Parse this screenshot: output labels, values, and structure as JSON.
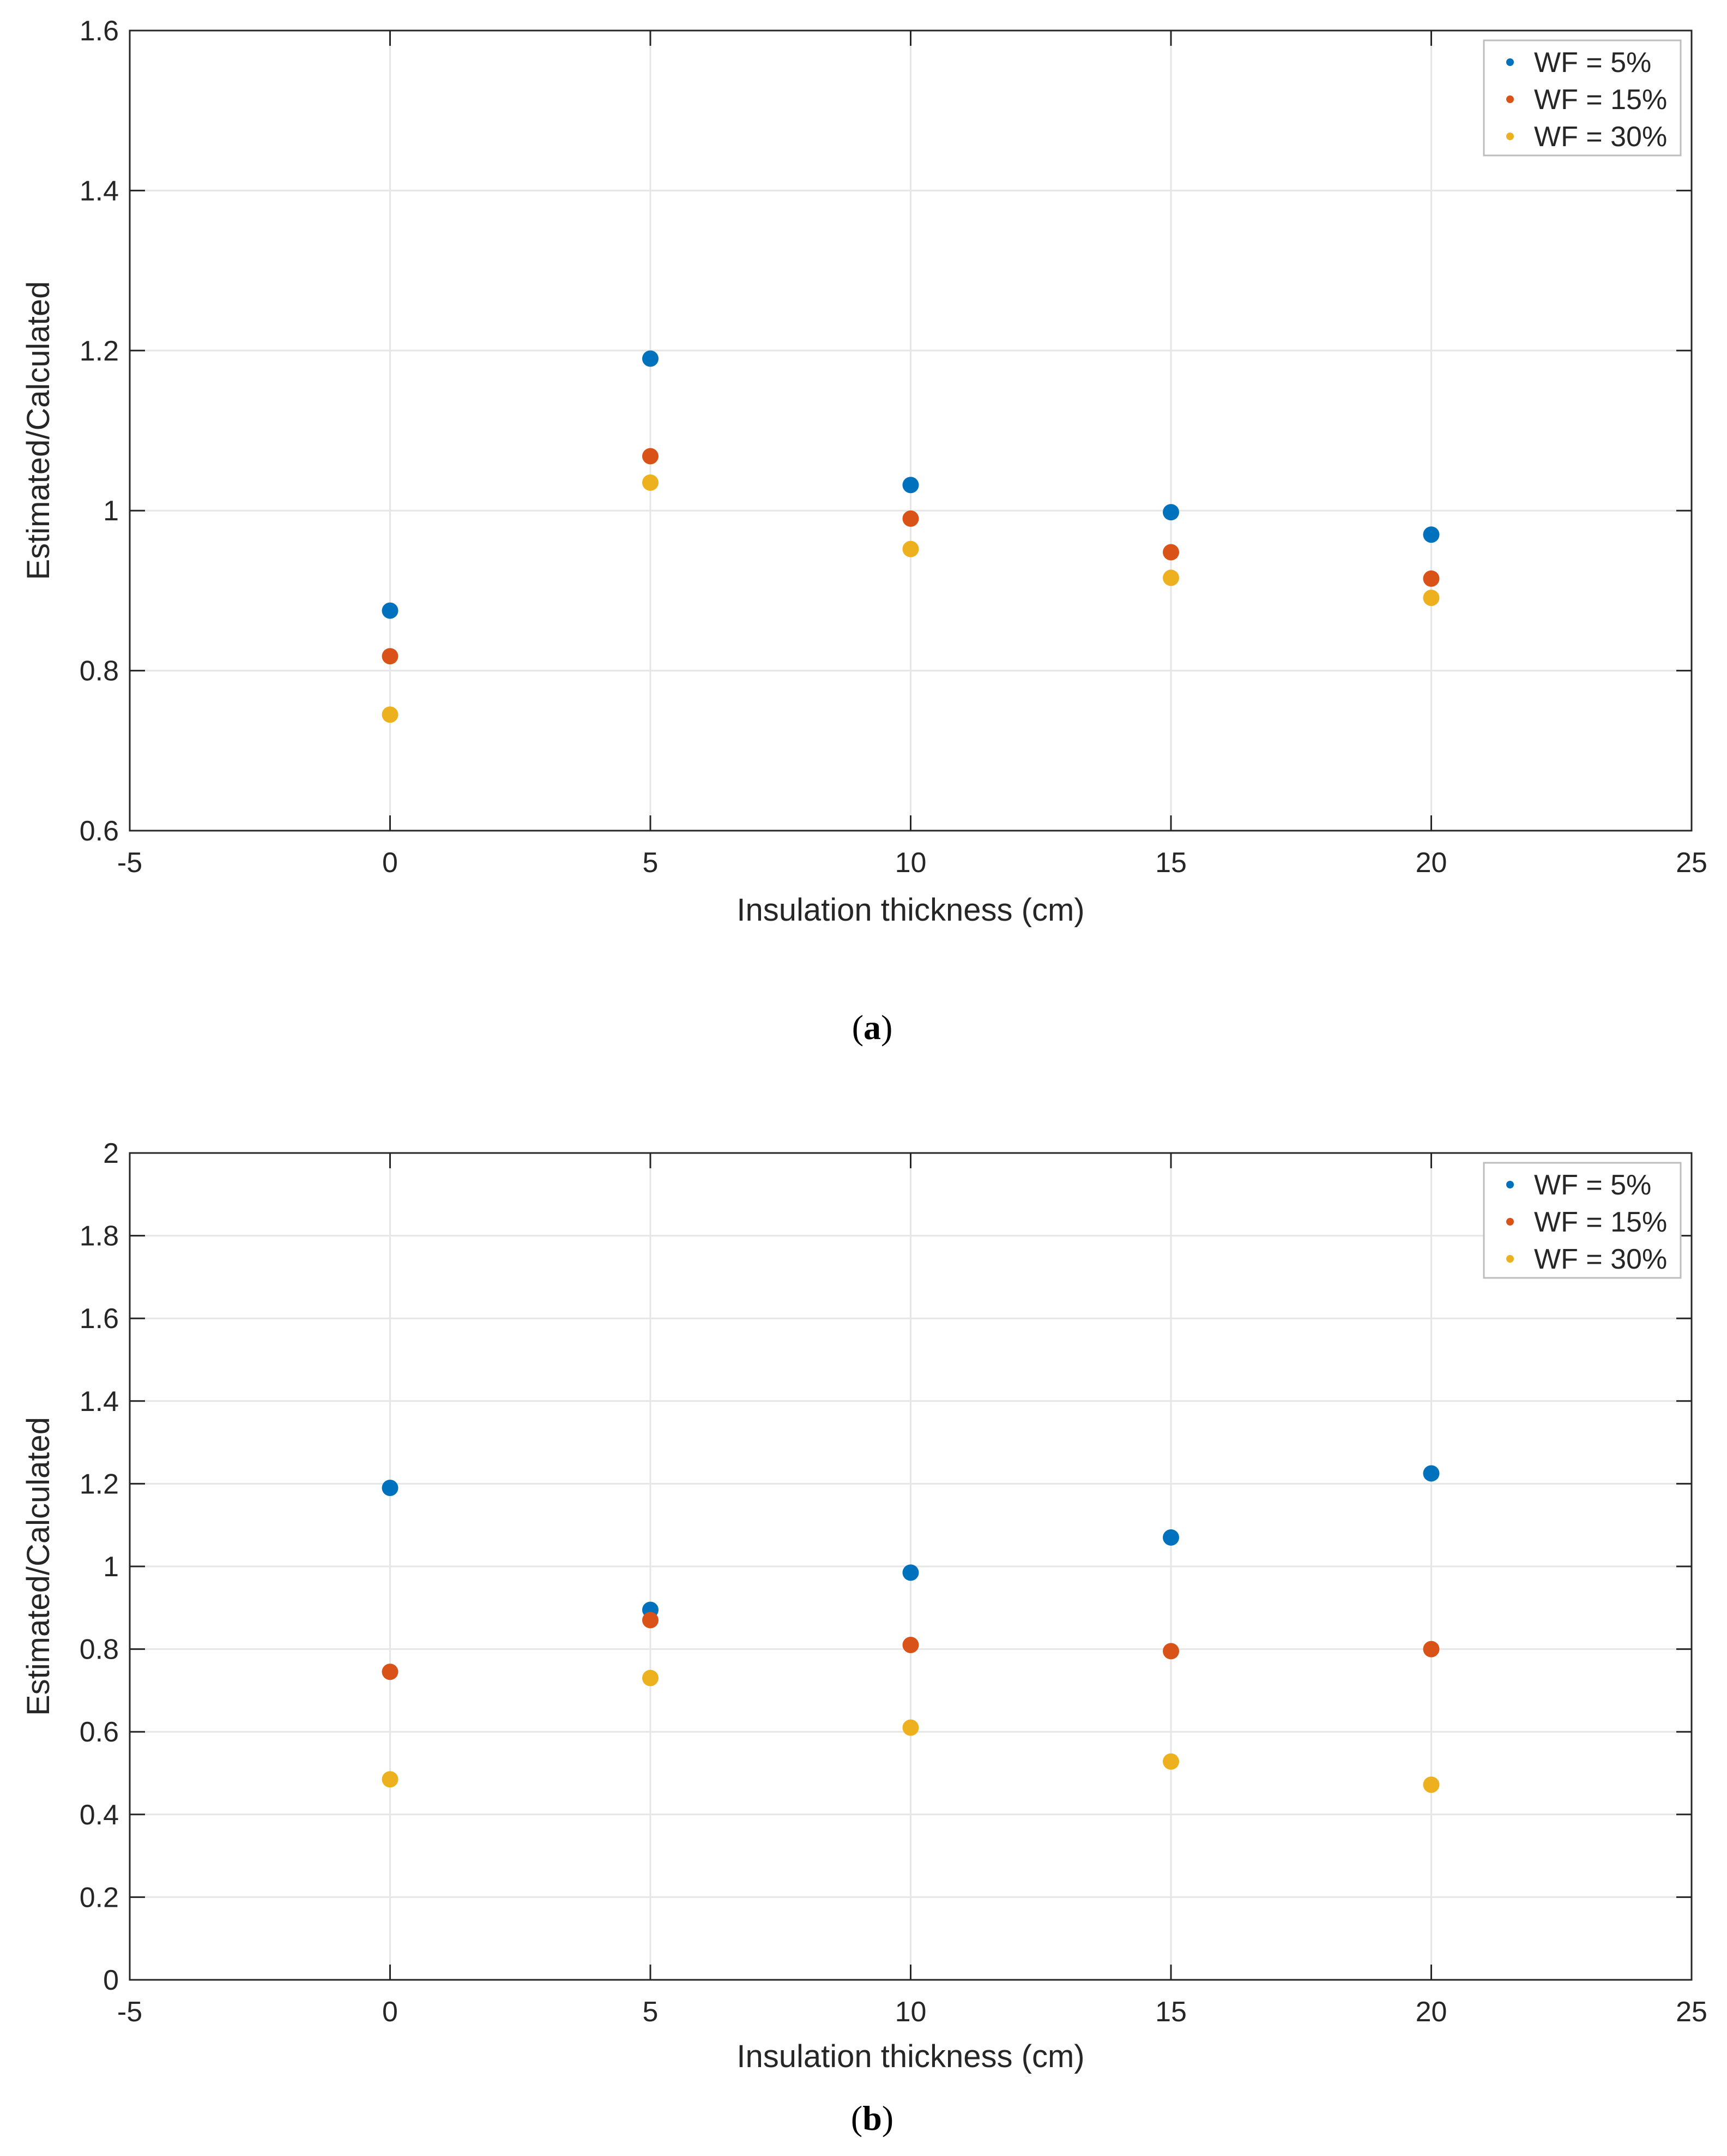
{
  "colors": {
    "series": [
      "#0072BD",
      "#D95319",
      "#EDB120"
    ],
    "grid": "#e6e6e6",
    "axis": "#262626"
  },
  "chart_data": [
    {
      "type": "scatter",
      "caption_letter": "a",
      "xlabel": "Insulation thickness (cm)",
      "ylabel": "Estimated/Calculated",
      "xlim": [
        -5,
        25
      ],
      "ylim": [
        0.6,
        1.6
      ],
      "xticks": [
        -5,
        0,
        5,
        10,
        15,
        20,
        25
      ],
      "yticks": [
        0.6,
        0.8,
        1,
        1.2,
        1.4,
        1.6
      ],
      "grid": true,
      "legend_position": "top-right",
      "x": [
        0,
        5,
        10,
        15,
        20
      ],
      "series": [
        {
          "name": "WF = 5%",
          "values": [
            0.875,
            1.19,
            1.032,
            0.998,
            0.97
          ]
        },
        {
          "name": "WF = 15%",
          "values": [
            0.818,
            1.068,
            0.99,
            0.948,
            0.915
          ]
        },
        {
          "name": "WF = 30%",
          "values": [
            0.745,
            1.035,
            0.952,
            0.916,
            0.891
          ]
        }
      ]
    },
    {
      "type": "scatter",
      "caption_letter": "b",
      "xlabel": "Insulation thickness (cm)",
      "ylabel": "Estimated/Calculated",
      "xlim": [
        -5,
        25
      ],
      "ylim": [
        0,
        2
      ],
      "xticks": [
        -5,
        0,
        5,
        10,
        15,
        20,
        25
      ],
      "yticks": [
        0,
        0.2,
        0.4,
        0.6,
        0.8,
        1,
        1.2,
        1.4,
        1.6,
        1.8,
        2
      ],
      "grid": true,
      "legend_position": "top-right",
      "x": [
        0,
        5,
        10,
        15,
        20
      ],
      "series": [
        {
          "name": "WF = 5%",
          "values": [
            1.19,
            0.895,
            0.985,
            1.07,
            1.225
          ]
        },
        {
          "name": "WF = 15%",
          "values": [
            0.745,
            0.87,
            0.81,
            0.795,
            0.8
          ]
        },
        {
          "name": "WF = 30%",
          "values": [
            0.485,
            0.73,
            0.61,
            0.528,
            0.472
          ]
        }
      ]
    }
  ]
}
